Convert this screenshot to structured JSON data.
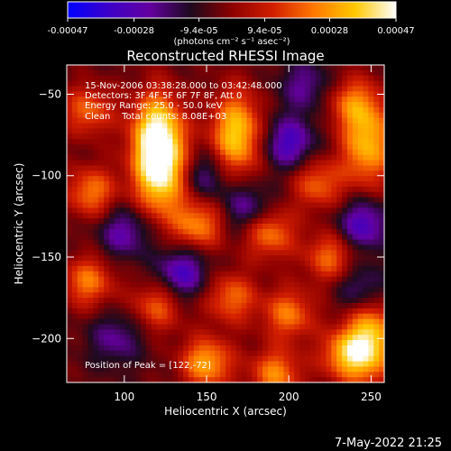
{
  "chart_data": {
    "type": "heatmap",
    "title": "Reconstructed RHESSI Image",
    "xlabel": "Heliocentric X (arcsec)",
    "ylabel": "Heliocentric Y (arcsec)",
    "xlim": [
      65,
      258
    ],
    "ylim": [
      -227,
      -32
    ],
    "x_ticks": [
      100,
      150,
      200,
      250
    ],
    "y_ticks": [
      -50,
      -100,
      -150,
      -200
    ],
    "colorbar": {
      "range": [
        -0.00047,
        0.00047
      ],
      "tick_values": [
        -0.00047,
        -0.00028,
        -9.4e-05,
        9.4e-05,
        0.00028,
        0.00047
      ],
      "tick_labels": [
        "-0.00047",
        "-0.00028",
        "-9.4e-05",
        "9.4e-05",
        "0.00028",
        "0.00047"
      ],
      "unit_label": "(photons cm⁻² s⁻¹ asec⁻²)",
      "colors": [
        "#0000ff",
        "#3c00c8",
        "#6400a0",
        "#1e0a1e",
        "#8c0000",
        "#d21e00",
        "#ff7800",
        "#ffc800",
        "#ffffff"
      ]
    },
    "annotations": [
      "15-Nov-2006 03:38:28.000 to 03:42:48.000",
      "Detectors: 3F 4F 5F 6F 7F 8F, Att 0",
      "Energy Range: 25.0 - 50.0 keV",
      "Clean    Total counts: 8.08E+03"
    ],
    "peak_label": "Position of Peak = [122,-72]",
    "peak": [
      122,
      -72
    ],
    "bright_sources": [
      {
        "x": 120,
        "y": -75,
        "value": 0.00047
      },
      {
        "x": 122,
        "y": -100,
        "value": 0.0004
      },
      {
        "x": 168,
        "y": -75,
        "value": 0.00042
      },
      {
        "x": 248,
        "y": -80,
        "value": 0.00038
      },
      {
        "x": 238,
        "y": -55,
        "value": 0.00022
      },
      {
        "x": 78,
        "y": -60,
        "value": 0.00025
      },
      {
        "x": 80,
        "y": -110,
        "value": 0.00028
      },
      {
        "x": 145,
        "y": -130,
        "value": 0.0003
      },
      {
        "x": 188,
        "y": -135,
        "value": 0.0003
      },
      {
        "x": 218,
        "y": -105,
        "value": 0.00025
      },
      {
        "x": 225,
        "y": -150,
        "value": 0.00026
      },
      {
        "x": 200,
        "y": -185,
        "value": 0.00028
      },
      {
        "x": 250,
        "y": -200,
        "value": 0.0004
      },
      {
        "x": 235,
        "y": -210,
        "value": 0.00033
      },
      {
        "x": 165,
        "y": -175,
        "value": 0.00026
      },
      {
        "x": 120,
        "y": -180,
        "value": 0.00024
      },
      {
        "x": 78,
        "y": -165,
        "value": 0.00028
      },
      {
        "x": 150,
        "y": -215,
        "value": 0.00035
      },
      {
        "x": 192,
        "y": -222,
        "value": 0.0003
      }
    ],
    "dim_regions": [
      {
        "x": 200,
        "y": -80,
        "value": -0.00028
      },
      {
        "x": 135,
        "y": -160,
        "value": -0.00028
      },
      {
        "x": 100,
        "y": -135,
        "value": -0.00022
      },
      {
        "x": 175,
        "y": -120,
        "value": -0.00022
      },
      {
        "x": 245,
        "y": -130,
        "value": -0.00028
      },
      {
        "x": 245,
        "y": -170,
        "value": -0.00022
      },
      {
        "x": 150,
        "y": -100,
        "value": -0.00018
      },
      {
        "x": 95,
        "y": -200,
        "value": -0.00018
      },
      {
        "x": 210,
        "y": -45,
        "value": -0.00018
      }
    ]
  },
  "footer": {
    "timestamp": "7-May-2022 21:25"
  }
}
